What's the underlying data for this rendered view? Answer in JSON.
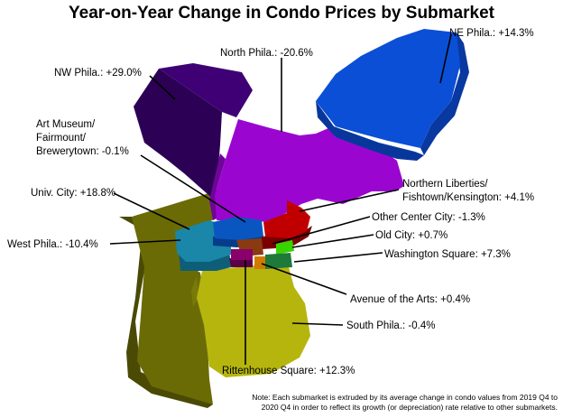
{
  "title": "Year-on-Year Change in Condo Prices by Submarket",
  "submarkets": [
    {
      "label": "NE Phila.: +14.3%",
      "color": "#0b4fd6",
      "change_pct": 14.3
    },
    {
      "label": "North Phila.: -20.6%",
      "color": "#9a06d0",
      "change_pct": -20.6
    },
    {
      "label": "NW Phila.: +29.0%",
      "color": "#3f0075",
      "change_pct": 29.0
    },
    {
      "label_lines": [
        "Art Museum/",
        "Fairmount/",
        "Brewerytown: -0.1%"
      ],
      "color": "#0a56c0",
      "change_pct": -0.1
    },
    {
      "label_lines": [
        "Northern Liberties/",
        "Fishtown/Kensington: +4.1%"
      ],
      "color": "#c00000",
      "change_pct": 4.1
    },
    {
      "label": "Univ. City: +18.8%",
      "color": "#1a86a8",
      "change_pct": 18.8
    },
    {
      "label": "Other Center City: -1.3%",
      "color": "#8a3a10",
      "change_pct": -1.3
    },
    {
      "label": "West Phila.: -10.4%",
      "color": "#6b6b06",
      "change_pct": -10.4
    },
    {
      "label": "Old City: +0.7%",
      "color": "#39d400",
      "change_pct": 0.7
    },
    {
      "label": "Washington Square: +7.3%",
      "color": "#1e7a3a",
      "change_pct": 7.3
    },
    {
      "label": "Avenue of the Arts: +0.4%",
      "color": "#d07a00",
      "change_pct": 0.4
    },
    {
      "label": "South Phila.: -0.4%",
      "color": "#b5b50e",
      "change_pct": -0.4
    },
    {
      "label": "Rittenhouse Square: +12.3%",
      "color": "#8a006a",
      "change_pct": 12.3
    }
  ],
  "note": {
    "line1": "Note: Each submarket is extruded by its average change in condo values from 2019 Q4 to",
    "line2": "2020 Q4 in order to reflect its growth (or depreciation) rate relative to other submarkets."
  }
}
